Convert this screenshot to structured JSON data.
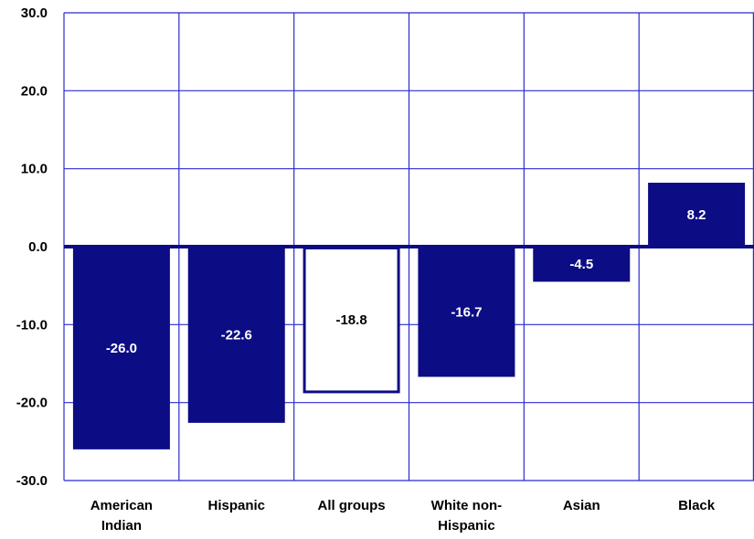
{
  "chart_data": {
    "type": "bar",
    "title": "",
    "xlabel": "",
    "ylabel": "",
    "ylim": [
      -30,
      30
    ],
    "yticks": [
      30,
      20,
      10,
      0,
      -10,
      -20,
      -30
    ],
    "ytick_labels": [
      "30.0",
      "20.0",
      "10.0",
      "0.0",
      "-10.0",
      "-20.0",
      "-30.0"
    ],
    "categories": [
      [
        "American",
        "Indian"
      ],
      [
        "Hispanic"
      ],
      [
        "All groups"
      ],
      [
        "White non-",
        "Hispanic"
      ],
      [
        "Asian"
      ],
      [
        "Black"
      ]
    ],
    "values": [
      -26.0,
      -22.6,
      -18.8,
      -16.7,
      -4.5,
      8.2
    ],
    "value_labels": [
      "-26.0",
      "-22.6",
      "-18.8",
      "-16.7",
      "-4.5",
      "8.2"
    ],
    "highlight_index": 2,
    "grid": true,
    "colors": {
      "bar": "#0c0c85",
      "grid": "#2b2bd0",
      "zero_line": "#0c0c85",
      "label_on_bar": "#ffffff",
      "label_on_highlight": "#000000"
    }
  }
}
